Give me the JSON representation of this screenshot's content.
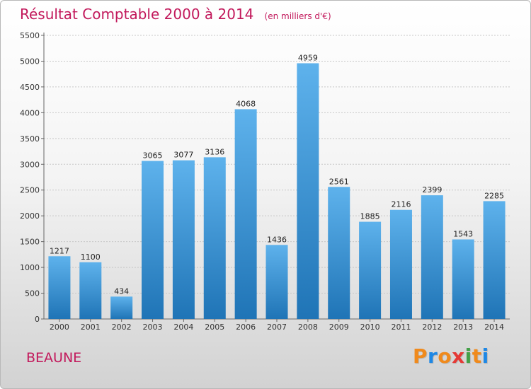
{
  "title": "Résultat Comptable 2000 à 2014",
  "unit": "(en milliers d'€)",
  "place": "BEAUNE",
  "logo": {
    "letters": [
      "P",
      "r",
      "o",
      "x",
      "i",
      "t",
      "i"
    ],
    "colors": [
      "#f08a1c",
      "#1e88e5",
      "#f08a1c",
      "#e53935",
      "#43a047",
      "#f08a1c",
      "#1e88e5"
    ]
  },
  "colors": {
    "bar_top": "#5eb2ec",
    "bar_bottom": "#1f74b6",
    "accent": "#c2185b"
  },
  "chart_data": {
    "type": "bar",
    "categories": [
      "2000",
      "2001",
      "2002",
      "2003",
      "2004",
      "2005",
      "2006",
      "2007",
      "2008",
      "2009",
      "2010",
      "2011",
      "2012",
      "2013",
      "2014"
    ],
    "values": [
      1217,
      1100,
      434,
      3065,
      3077,
      3136,
      4068,
      1436,
      4959,
      2561,
      1885,
      2116,
      2399,
      1543,
      2285
    ],
    "ylim": [
      0,
      5500
    ],
    "yticks": [
      0,
      500,
      1000,
      1500,
      2000,
      2500,
      3000,
      3500,
      4000,
      4500,
      5000,
      5500
    ],
    "title": "Résultat Comptable 2000 à 2014",
    "xlabel": "",
    "ylabel": "",
    "grid": true
  }
}
